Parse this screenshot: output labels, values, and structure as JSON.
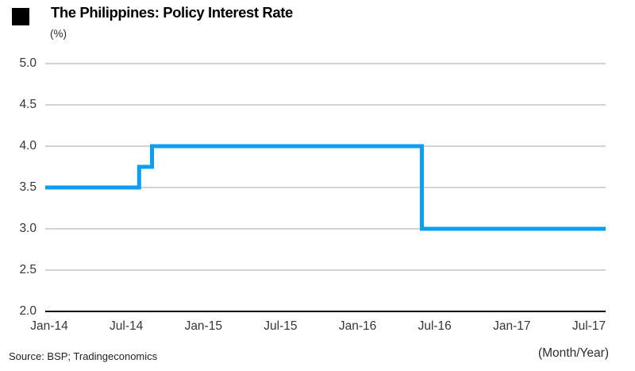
{
  "header": {
    "title": "The Philippines: Policy Interest Rate",
    "unit_label": "(%)",
    "title_marker_icon": "black-square"
  },
  "chart_data": {
    "type": "line",
    "subtype": "step-after",
    "title": "The Philippines: Policy Interest Rate",
    "ylabel": "(%)",
    "xlabel": "(Month/Year)",
    "ylim": [
      2.0,
      5.0
    ],
    "ytick_labels": [
      "5.0",
      "4.5",
      "4.0",
      "3.5",
      "3.0",
      "2.5",
      "2.0"
    ],
    "xtick_labels": [
      "Jan-14",
      "Jul-14",
      "Jan-15",
      "Jul-15",
      "Jan-16",
      "Jul-16",
      "Jan-17",
      "Jul-17"
    ],
    "xtick_interval_months": 6,
    "grid": "horizontal",
    "legend": "none",
    "series": [
      {
        "name": "Policy interest rate (%)",
        "step_points": [
          {
            "date": "2014-01",
            "label": "Jan-14",
            "value": 3.5
          },
          {
            "date": "2014-08",
            "label": "Aug-14",
            "value": 3.75
          },
          {
            "date": "2014-09",
            "label": "Sep-14",
            "value": 4.0
          },
          {
            "date": "2016-06",
            "label": "Jun-16",
            "value": 3.0
          },
          {
            "date": "2017-08",
            "label": "Aug-17",
            "value": 3.0
          }
        ]
      }
    ],
    "colors": {
      "line": "#0a9ff2",
      "grid": "#b9b9b9",
      "axis": "#000000"
    }
  },
  "footer": {
    "source": "Source: BSP; Tradingeconomics"
  }
}
